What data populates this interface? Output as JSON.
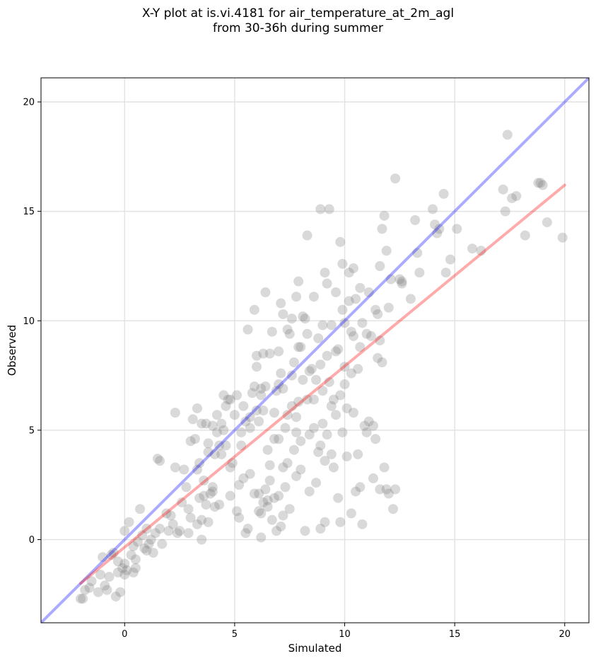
{
  "chart_data": {
    "type": "scatter",
    "title_lines": [
      "X-Y plot at is.vi.4181 for air_temperature_at_2m_agl",
      "from 30-36h during summer"
    ],
    "xlabel": "Simulated",
    "ylabel": "Observed",
    "xlim": [
      -3.8,
      21.1
    ],
    "ylim": [
      -3.8,
      21.1
    ],
    "xticks": [
      0,
      5,
      10,
      15,
      20
    ],
    "yticks": [
      0,
      5,
      10,
      15,
      20
    ],
    "grid": true,
    "point_color": "#808080",
    "identity_line": {
      "color": "#0000ff",
      "from": [
        -3.8,
        -3.8
      ],
      "to": [
        21.1,
        21.1
      ]
    },
    "fit_line": {
      "color": "#ff0000",
      "from": [
        -2.0,
        -2.0
      ],
      "to": [
        20.0,
        16.2
      ]
    },
    "points": [
      [
        -2.0,
        -2.7
      ],
      [
        -1.9,
        -2.7
      ],
      [
        -1.8,
        -2.3
      ],
      [
        -1.6,
        -2.2
      ],
      [
        -1.5,
        -1.9
      ],
      [
        -1.2,
        -2.4
      ],
      [
        -1.1,
        -1.6
      ],
      [
        -1.0,
        -0.8
      ],
      [
        -0.9,
        -2.1
      ],
      [
        -0.8,
        -2.3
      ],
      [
        -0.7,
        -1.7
      ],
      [
        -0.6,
        -0.7
      ],
      [
        -0.5,
        -0.6
      ],
      [
        -0.4,
        -2.6
      ],
      [
        -0.3,
        -1.5
      ],
      [
        -0.2,
        -2.4
      ],
      [
        -0.1,
        -1.3
      ],
      [
        0.0,
        -1.1
      ],
      [
        0.0,
        -1.6
      ],
      [
        0.1,
        -1.4
      ],
      [
        0.0,
        0.4
      ],
      [
        0.2,
        0.8
      ],
      [
        0.3,
        -0.7
      ],
      [
        0.4,
        -1.5
      ],
      [
        0.4,
        -0.3
      ],
      [
        0.5,
        -0.9
      ],
      [
        0.6,
        -0.1
      ],
      [
        0.7,
        1.4
      ],
      [
        0.8,
        0.2
      ],
      [
        0.9,
        -0.4
      ],
      [
        1.0,
        0.5
      ],
      [
        1.1,
        -0.2
      ],
      [
        1.2,
        0.0
      ],
      [
        1.3,
        -0.6
      ],
      [
        1.4,
        0.3
      ],
      [
        1.5,
        3.7
      ],
      [
        1.6,
        3.6
      ],
      [
        1.7,
        -0.2
      ],
      [
        1.9,
        1.2
      ],
      [
        2.0,
        0.4
      ],
      [
        2.2,
        0.7
      ],
      [
        2.3,
        5.8
      ],
      [
        2.3,
        3.3
      ],
      [
        2.4,
        0.3
      ],
      [
        2.6,
        1.7
      ],
      [
        2.7,
        3.2
      ],
      [
        2.8,
        2.4
      ],
      [
        2.9,
        0.3
      ],
      [
        2.9,
        1.4
      ],
      [
        3.0,
        4.5
      ],
      [
        3.1,
        5.5
      ],
      [
        3.2,
        4.6
      ],
      [
        3.3,
        6.0
      ],
      [
        3.3,
        3.2
      ],
      [
        3.3,
        0.7
      ],
      [
        3.4,
        3.5
      ],
      [
        3.4,
        1.9
      ],
      [
        3.5,
        0.9
      ],
      [
        3.5,
        5.3
      ],
      [
        3.5,
        0.0
      ],
      [
        3.6,
        2.0
      ],
      [
        3.7,
        1.6
      ],
      [
        3.7,
        5.3
      ],
      [
        3.8,
        4.4
      ],
      [
        3.8,
        0.8
      ],
      [
        3.9,
        2.1
      ],
      [
        4.0,
        2.4
      ],
      [
        4.0,
        5.2
      ],
      [
        4.1,
        3.9
      ],
      [
        4.1,
        1.5
      ],
      [
        4.2,
        5.7
      ],
      [
        4.3,
        4.3
      ],
      [
        4.3,
        1.6
      ],
      [
        4.4,
        3.9
      ],
      [
        4.5,
        6.6
      ],
      [
        4.5,
        5.0
      ],
      [
        4.6,
        4.3
      ],
      [
        4.6,
        6.1
      ],
      [
        4.7,
        6.4
      ],
      [
        4.8,
        6.4
      ],
      [
        4.8,
        3.3
      ],
      [
        4.8,
        2.0
      ],
      [
        5.0,
        5.7
      ],
      [
        5.1,
        1.3
      ],
      [
        5.1,
        6.6
      ],
      [
        5.2,
        1.0
      ],
      [
        5.2,
        2.5
      ],
      [
        5.3,
        4.9
      ],
      [
        5.4,
        2.8
      ],
      [
        5.5,
        0.3
      ],
      [
        5.5,
        5.4
      ],
      [
        5.6,
        9.6
      ],
      [
        5.6,
        0.5
      ],
      [
        5.7,
        3.0
      ],
      [
        5.7,
        5.1
      ],
      [
        5.8,
        6.7
      ],
      [
        5.9,
        10.5
      ],
      [
        5.9,
        2.1
      ],
      [
        6.0,
        8.4
      ],
      [
        6.0,
        7.9
      ],
      [
        6.1,
        5.4
      ],
      [
        6.1,
        1.3
      ],
      [
        6.2,
        1.2
      ],
      [
        6.2,
        0.1
      ],
      [
        6.2,
        6.6
      ],
      [
        6.3,
        8.5
      ],
      [
        6.3,
        5.9
      ],
      [
        6.3,
        1.7
      ],
      [
        6.4,
        11.3
      ],
      [
        6.4,
        7.0
      ],
      [
        6.4,
        2.3
      ],
      [
        6.5,
        4.1
      ],
      [
        6.5,
        1.5
      ],
      [
        6.6,
        8.5
      ],
      [
        6.6,
        3.4
      ],
      [
        6.7,
        0.9
      ],
      [
        6.7,
        9.5
      ],
      [
        6.8,
        1.9
      ],
      [
        6.8,
        5.8
      ],
      [
        6.9,
        6.8
      ],
      [
        6.9,
        0.4
      ],
      [
        7.0,
        2.0
      ],
      [
        7.0,
        4.6
      ],
      [
        7.1,
        10.8
      ],
      [
        7.1,
        7.6
      ],
      [
        7.1,
        0.6
      ],
      [
        7.2,
        10.3
      ],
      [
        7.2,
        6.9
      ],
      [
        7.2,
        1.1
      ],
      [
        7.3,
        2.4
      ],
      [
        7.4,
        9.6
      ],
      [
        7.4,
        3.5
      ],
      [
        7.4,
        5.7
      ],
      [
        7.5,
        9.4
      ],
      [
        7.5,
        1.4
      ],
      [
        7.6,
        10.1
      ],
      [
        7.6,
        7.5
      ],
      [
        7.7,
        8.1
      ],
      [
        7.7,
        4.1
      ],
      [
        7.8,
        11.1
      ],
      [
        7.8,
        4.9
      ],
      [
        7.8,
        2.9
      ],
      [
        7.9,
        11.8
      ],
      [
        7.9,
        8.8
      ],
      [
        7.9,
        6.3
      ],
      [
        8.0,
        4.5
      ],
      [
        8.0,
        3.2
      ],
      [
        8.1,
        10.2
      ],
      [
        8.1,
        7.3
      ],
      [
        8.2,
        10.1
      ],
      [
        8.2,
        0.4
      ],
      [
        8.3,
        13.9
      ],
      [
        8.3,
        9.4
      ],
      [
        8.3,
        6.4
      ],
      [
        8.4,
        4.8
      ],
      [
        8.4,
        2.2
      ],
      [
        8.5,
        7.8
      ],
      [
        8.6,
        11.1
      ],
      [
        8.6,
        5.1
      ],
      [
        8.7,
        7.3
      ],
      [
        8.7,
        2.6
      ],
      [
        8.8,
        9.2
      ],
      [
        8.8,
        4.0
      ],
      [
        8.9,
        15.1
      ],
      [
        8.9,
        8.0
      ],
      [
        8.9,
        0.5
      ],
      [
        9.0,
        9.8
      ],
      [
        9.0,
        6.8
      ],
      [
        9.1,
        12.2
      ],
      [
        9.1,
        3.6
      ],
      [
        9.1,
        0.8
      ],
      [
        9.2,
        11.7
      ],
      [
        9.2,
        8.4
      ],
      [
        9.3,
        15.1
      ],
      [
        9.3,
        7.2
      ],
      [
        9.4,
        3.9
      ],
      [
        9.4,
        9.8
      ],
      [
        9.5,
        6.4
      ],
      [
        9.5,
        3.3
      ],
      [
        9.6,
        11.3
      ],
      [
        9.6,
        5.7
      ],
      [
        9.7,
        8.7
      ],
      [
        9.7,
        1.9
      ],
      [
        9.8,
        13.6
      ],
      [
        9.8,
        6.6
      ],
      [
        9.8,
        0.8
      ],
      [
        9.9,
        12.6
      ],
      [
        9.9,
        10.5
      ],
      [
        9.9,
        4.9
      ],
      [
        10.0,
        9.9
      ],
      [
        10.0,
        7.9
      ],
      [
        10.1,
        6.0
      ],
      [
        10.1,
        3.8
      ],
      [
        10.2,
        12.2
      ],
      [
        10.2,
        10.9
      ],
      [
        10.3,
        1.2
      ],
      [
        10.3,
        7.6
      ],
      [
        10.4,
        12.4
      ],
      [
        10.4,
        5.8
      ],
      [
        10.5,
        11.0
      ],
      [
        10.5,
        2.2
      ],
      [
        10.6,
        3.9
      ],
      [
        10.6,
        7.8
      ],
      [
        10.7,
        2.4
      ],
      [
        10.7,
        11.5
      ],
      [
        10.8,
        9.9
      ],
      [
        10.8,
        0.7
      ],
      [
        10.9,
        5.2
      ],
      [
        11.0,
        9.4
      ],
      [
        11.0,
        4.9
      ],
      [
        11.1,
        11.3
      ],
      [
        11.1,
        5.4
      ],
      [
        11.2,
        9.3
      ],
      [
        11.3,
        2.8
      ],
      [
        11.4,
        10.5
      ],
      [
        11.4,
        4.6
      ],
      [
        11.5,
        10.3
      ],
      [
        11.5,
        8.3
      ],
      [
        11.6,
        2.3
      ],
      [
        11.6,
        12.5
      ],
      [
        11.7,
        14.2
      ],
      [
        11.7,
        8.1
      ],
      [
        11.8,
        14.8
      ],
      [
        11.8,
        3.3
      ],
      [
        11.9,
        13.2
      ],
      [
        11.9,
        2.3
      ],
      [
        12.0,
        2.1
      ],
      [
        12.1,
        11.9
      ],
      [
        12.2,
        1.4
      ],
      [
        12.3,
        16.5
      ],
      [
        12.3,
        2.3
      ],
      [
        12.5,
        11.9
      ],
      [
        12.6,
        11.7
      ],
      [
        13.2,
        14.6
      ],
      [
        13.3,
        13.1
      ],
      [
        13.4,
        12.2
      ],
      [
        14.0,
        15.1
      ],
      [
        14.1,
        14.4
      ],
      [
        14.2,
        14.0
      ],
      [
        14.3,
        14.2
      ],
      [
        14.5,
        15.8
      ],
      [
        14.6,
        12.2
      ],
      [
        14.8,
        12.8
      ],
      [
        15.1,
        14.2
      ],
      [
        15.8,
        13.3
      ],
      [
        16.2,
        13.2
      ],
      [
        17.2,
        16.0
      ],
      [
        17.3,
        15.0
      ],
      [
        17.4,
        18.5
      ],
      [
        17.6,
        15.6
      ],
      [
        17.8,
        15.7
      ],
      [
        18.2,
        13.9
      ],
      [
        18.8,
        16.3
      ],
      [
        18.9,
        16.3
      ],
      [
        19.0,
        16.2
      ],
      [
        19.2,
        14.5
      ],
      [
        19.9,
        13.8
      ],
      [
        -0.3,
        -1.0
      ],
      [
        0.5,
        -1.3
      ],
      [
        1.0,
        -0.5
      ],
      [
        1.6,
        0.5
      ],
      [
        2.1,
        1.1
      ],
      [
        2.5,
        0.4
      ],
      [
        3.0,
        1.0
      ],
      [
        3.6,
        2.7
      ],
      [
        4.0,
        2.2
      ],
      [
        4.2,
        4.9
      ],
      [
        4.9,
        3.5
      ],
      [
        5.3,
        4.3
      ],
      [
        5.7,
        5.6
      ],
      [
        6.0,
        5.9
      ],
      [
        6.1,
        2.1
      ],
      [
        6.5,
        1.8
      ],
      [
        6.8,
        4.6
      ],
      [
        7.0,
        8.6
      ],
      [
        7.3,
        5.1
      ],
      [
        7.6,
        6.1
      ],
      [
        8.0,
        8.8
      ],
      [
        8.4,
        7.7
      ],
      [
        8.6,
        6.4
      ],
      [
        9.0,
        5.3
      ],
      [
        9.2,
        4.8
      ],
      [
        9.6,
        8.6
      ],
      [
        10.0,
        7.1
      ],
      [
        10.3,
        9.5
      ],
      [
        10.7,
        8.8
      ],
      [
        11.3,
        5.2
      ],
      [
        11.6,
        9.1
      ],
      [
        12.0,
        10.6
      ],
      [
        12.6,
        11.8
      ],
      [
        13.0,
        11.0
      ],
      [
        6.6,
        2.7
      ],
      [
        7.2,
        3.3
      ],
      [
        5.4,
        6.1
      ],
      [
        4.4,
        5.3
      ],
      [
        3.8,
        4.0
      ],
      [
        7.8,
        5.6
      ],
      [
        8.9,
        4.3
      ],
      [
        9.4,
        6.1
      ],
      [
        10.4,
        9.3
      ],
      [
        6.2,
        6.9
      ],
      [
        5.9,
        7.0
      ],
      [
        7.0,
        7.1
      ]
    ]
  }
}
